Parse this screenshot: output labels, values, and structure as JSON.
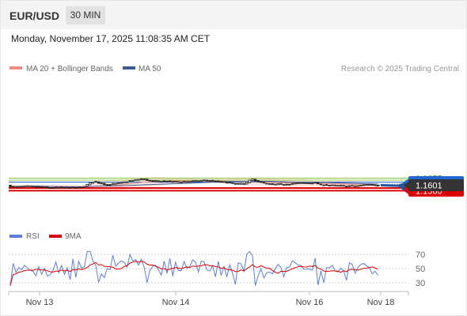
{
  "header": {
    "symbol": "EUR/USD",
    "timeframe": "30 MIN"
  },
  "timestamp": "Monday, November 17, 2025 11:08:35 AM CET",
  "legend": {
    "bollinger_label": "MA 20 + Bollinger Bands",
    "ma50_label": "MA 50",
    "bollinger_color": "#f28b82",
    "ma50_color": "#3d5a98"
  },
  "credit": "Research © 2025 Trading Central",
  "rsi_legend": {
    "rsi_label": "RSI",
    "ma_label": "9MA",
    "rsi_color": "#5b7fd6",
    "ma_color": "#dd0000"
  },
  "chart_data": [
    {
      "type": "candlestick",
      "title": "EUR/USD 30 MIN",
      "ylim": [
        1.1553,
        1.166
      ],
      "current_price": "1.1601",
      "levels": [
        {
          "value": "1.1655",
          "kind": "resistance",
          "color": "#8cc63f"
        },
        {
          "value": "1.1640",
          "kind": "resistance",
          "color": "#8cc63f"
        },
        {
          "value": "1.1625",
          "kind": "pivot",
          "color": "#1e66d0"
        },
        {
          "value": "1.1580",
          "kind": "support",
          "color": "#dd0000"
        },
        {
          "value": "1.1560",
          "kind": "support",
          "color": "#dd0000"
        }
      ],
      "x_ticks": [
        "Nov 13",
        "Nov 14",
        "Nov 16",
        "Nov 18"
      ],
      "series": [
        {
          "name": "MA 20 + Bollinger Bands",
          "color": "#f28b82"
        },
        {
          "name": "MA 50",
          "color": "#3d5a98"
        }
      ],
      "forecast": {
        "from": 1.1601,
        "to": 1.156,
        "color": "#1e5aa8"
      }
    },
    {
      "type": "line",
      "title": "RSI",
      "ylim": [
        20,
        80
      ],
      "y_ticks": [
        "70",
        "50",
        "30"
      ],
      "series": [
        {
          "name": "RSI",
          "color": "#5b7fd6"
        },
        {
          "name": "9MA",
          "color": "#dd0000"
        }
      ]
    }
  ]
}
